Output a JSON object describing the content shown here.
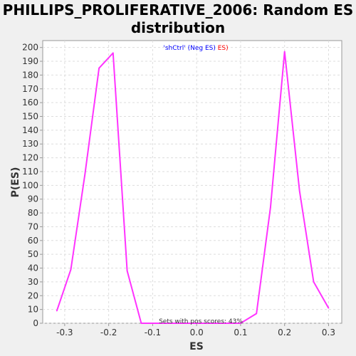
{
  "chart_data": {
    "type": "line",
    "title": "PHILLIPS_PROLIFERATIVE_2006: Random ES distribution",
    "xlabel": "ES",
    "ylabel": "P(ES)",
    "xlim": [
      -0.35,
      0.33
    ],
    "ylim": [
      0,
      205
    ],
    "x_ticks": [
      "-0.3",
      "-0.2",
      "-0.1",
      "0.0",
      "0.1",
      "0.2",
      "0.3"
    ],
    "x_tick_values": [
      -0.3,
      -0.2,
      -0.1,
      0.0,
      0.1,
      0.2,
      0.3
    ],
    "y_ticks": [
      "0",
      "10",
      "20",
      "30",
      "40",
      "50",
      "60",
      "70",
      "80",
      "90",
      "100",
      "110",
      "120",
      "130",
      "140",
      "150",
      "160",
      "170",
      "180",
      "190",
      "200"
    ],
    "y_tick_values": [
      0,
      10,
      20,
      30,
      40,
      50,
      60,
      70,
      80,
      90,
      100,
      110,
      120,
      130,
      140,
      150,
      160,
      170,
      180,
      190,
      200
    ],
    "grid": true,
    "legend": {
      "position": "top-center",
      "parts": [
        {
          "text": "'shCtrl'",
          "color": "#0000ff"
        },
        {
          "text": " (Neg ",
          "color": "#0000ff"
        },
        {
          "text": "ES",
          "color": "#0000ff"
        },
        {
          "text": ") ",
          "color": "#0000ff"
        },
        {
          "text": "ES)",
          "color": "#ff0000"
        }
      ]
    },
    "annotation": "Sets with pos scores: 43%",
    "series": [
      {
        "color": "#ff33ff",
        "x": [
          -0.318,
          -0.286,
          -0.254,
          -0.222,
          -0.19,
          -0.158,
          -0.126,
          -0.094,
          0.1,
          0.136,
          0.168,
          0.2,
          0.234,
          0.266,
          0.3
        ],
        "y": [
          9,
          39,
          108,
          185,
          196,
          38,
          0,
          0,
          0,
          7,
          84,
          197,
          96,
          30,
          11
        ]
      }
    ]
  }
}
